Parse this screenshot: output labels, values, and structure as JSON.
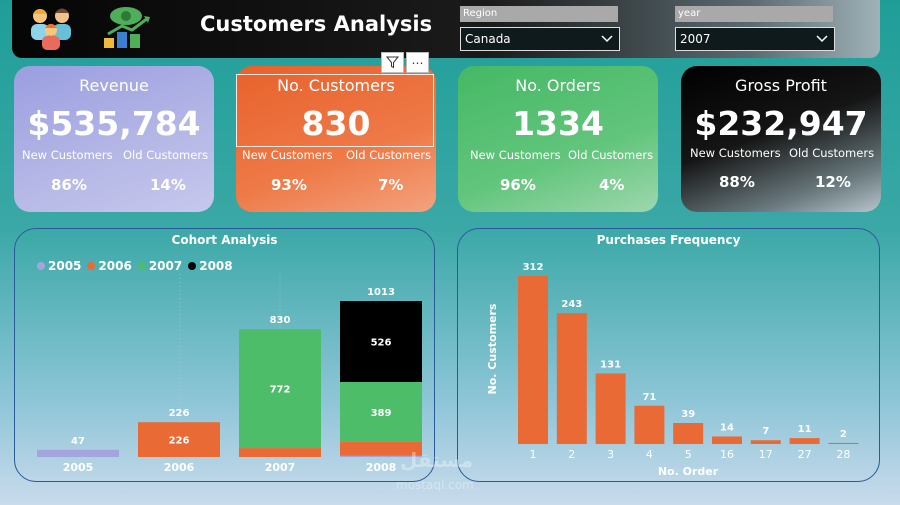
{
  "header": {
    "title": "Customers Analysis",
    "icons": [
      "customers-group-icon",
      "money-growth-icon"
    ]
  },
  "slicers": [
    {
      "label": "Region",
      "value": "Canada"
    },
    {
      "label": "year",
      "value": "2007"
    }
  ],
  "cards": [
    {
      "title": "Revenue",
      "value": "$535,784",
      "new_label": "New Customers",
      "old_label": "Old Customers",
      "new_pct": "86%",
      "old_pct": "14%",
      "color": "#a3a6de"
    },
    {
      "title": "No. Customers",
      "value": "830",
      "new_label": "New Customers",
      "old_label": "Old Customers",
      "new_pct": "93%",
      "old_pct": "7%",
      "color": "#ea6a35"
    },
    {
      "title": "No. Orders",
      "value": "1334",
      "new_label": "New Customers",
      "old_label": "Old Customers",
      "new_pct": "96%",
      "old_pct": "4%",
      "color": "#4dbd6a"
    },
    {
      "title": "Gross Profit",
      "value": "$232,947",
      "new_label": "New Customers",
      "old_label": "Old Customers",
      "new_pct": "88%",
      "old_pct": "12%",
      "color": "#000000"
    }
  ],
  "chart_data": [
    {
      "type": "bar",
      "stacked": true,
      "title": "Cohort Analysis",
      "categories": [
        "2005",
        "2006",
        "2007",
        "2008"
      ],
      "legend": [
        "2005",
        "2006",
        "2007",
        "2008"
      ],
      "legend_position": "top-left",
      "colors": {
        "2005": "#a3a6de",
        "2006": "#ea6a35",
        "2007": "#4dbd6a",
        "2008": "#000000"
      },
      "totals": [
        47,
        226,
        830,
        1013
      ],
      "series": [
        {
          "name": "2005",
          "values": [
            47,
            0,
            0,
            8
          ]
        },
        {
          "name": "2006",
          "values": [
            0,
            226,
            58,
            90
          ]
        },
        {
          "name": "2007",
          "values": [
            0,
            0,
            772,
            389
          ]
        },
        {
          "name": "2008",
          "values": [
            0,
            0,
            0,
            526
          ]
        }
      ],
      "data_labels": [
        {
          "category": "2006",
          "series": "2006",
          "text": "226"
        },
        {
          "category": "2007",
          "series": "2007",
          "text": "772"
        },
        {
          "category": "2008",
          "series": "2007",
          "text": "389"
        },
        {
          "category": "2008",
          "series": "2008",
          "text": "526"
        }
      ],
      "ylim": [
        0,
        1100
      ],
      "grid": false
    },
    {
      "type": "bar",
      "title": "Purchases Frequency",
      "xlabel": "No. Order",
      "ylabel": "No. Customers",
      "categories": [
        "1",
        "2",
        "3",
        "4",
        "5",
        "16",
        "17",
        "27",
        "28"
      ],
      "values": [
        312,
        243,
        131,
        71,
        39,
        14,
        7,
        11,
        2
      ],
      "color": "#ea6a35",
      "ylim": [
        0,
        340
      ],
      "grid": false
    }
  ],
  "visual_tools": {
    "filter_icon": "filter-icon",
    "more_icon": "more-options-icon",
    "more_text": "⋯"
  },
  "watermark": {
    "text": "مستقل",
    "sub": "mostaql.com"
  }
}
